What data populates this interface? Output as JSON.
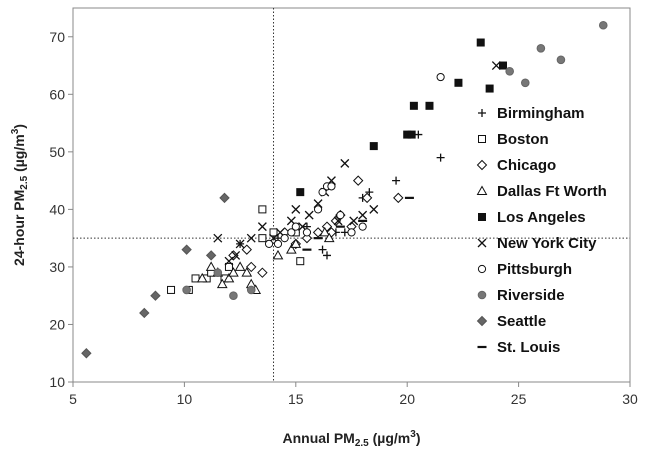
{
  "chart_data": {
    "type": "scatter",
    "xlabel": {
      "main": "Annual PM",
      "sub": "2.5",
      "unit": " (µg/m",
      "sup": "3",
      "close": ")"
    },
    "ylabel": {
      "main": "24-hour PM",
      "sub": "2.5",
      "unit": " (µg/m",
      "sup": "3",
      "close": ")"
    },
    "xlim": [
      5,
      30
    ],
    "ylim": [
      10,
      75
    ],
    "xticks": [
      "5",
      "10",
      "15",
      "20",
      "25",
      "30"
    ],
    "yticks": [
      "10",
      "20",
      "30",
      "40",
      "50",
      "60",
      "70"
    ],
    "reference_lines": {
      "x": 14,
      "y": 35
    },
    "legend_position": "right",
    "series": [
      {
        "name": "Birmingham",
        "marker": "plus",
        "points": [
          [
            12.5,
            34
          ],
          [
            14.2,
            35
          ],
          [
            14.5,
            35
          ],
          [
            15.0,
            36
          ],
          [
            15.5,
            37
          ],
          [
            16.0,
            36
          ],
          [
            16.2,
            33
          ],
          [
            16.4,
            32
          ],
          [
            16.8,
            36
          ],
          [
            17.2,
            36
          ],
          [
            17.5,
            36
          ],
          [
            18.0,
            42
          ],
          [
            18.3,
            43
          ],
          [
            19.5,
            45
          ],
          [
            20.5,
            53
          ],
          [
            21.5,
            49
          ]
        ]
      },
      {
        "name": "Boston",
        "marker": "square-open",
        "points": [
          [
            9.4,
            26
          ],
          [
            10.2,
            26
          ],
          [
            10.5,
            28
          ],
          [
            11.0,
            28
          ],
          [
            11.2,
            29
          ],
          [
            11.8,
            28
          ],
          [
            12.0,
            30
          ],
          [
            13.5,
            35
          ],
          [
            13.5,
            40
          ],
          [
            14.0,
            36
          ],
          [
            15.0,
            36
          ],
          [
            15.2,
            31
          ]
        ]
      },
      {
        "name": "Chicago",
        "marker": "diamond-open",
        "points": [
          [
            12.2,
            32
          ],
          [
            12.8,
            33
          ],
          [
            13.0,
            30
          ],
          [
            13.5,
            29
          ],
          [
            14.5,
            36
          ],
          [
            15.0,
            34
          ],
          [
            15.5,
            35
          ],
          [
            16.0,
            36
          ],
          [
            16.4,
            37
          ],
          [
            16.6,
            36
          ],
          [
            16.8,
            38
          ],
          [
            17.0,
            39
          ],
          [
            17.5,
            37
          ],
          [
            17.8,
            45
          ],
          [
            18.2,
            42
          ],
          [
            19.6,
            42
          ]
        ]
      },
      {
        "name": "Dallas Ft Worth",
        "marker": "triangle-open",
        "points": [
          [
            10.8,
            28
          ],
          [
            11.2,
            30
          ],
          [
            11.5,
            29
          ],
          [
            11.7,
            27
          ],
          [
            12.0,
            28
          ],
          [
            12.2,
            29
          ],
          [
            12.5,
            30
          ],
          [
            12.8,
            29
          ],
          [
            13.0,
            27
          ],
          [
            13.2,
            26
          ],
          [
            14.2,
            32
          ],
          [
            14.8,
            33
          ],
          [
            15.0,
            34
          ],
          [
            16.3,
            36
          ],
          [
            16.5,
            35
          ]
        ]
      },
      {
        "name": "Los Angeles",
        "marker": "square-filled",
        "points": [
          [
            15.2,
            43
          ],
          [
            18.5,
            51
          ],
          [
            20.0,
            53
          ],
          [
            20.2,
            53
          ],
          [
            20.3,
            58
          ],
          [
            21.0,
            58
          ],
          [
            22.3,
            62
          ],
          [
            23.3,
            69
          ],
          [
            23.7,
            61
          ],
          [
            24.3,
            65
          ]
        ]
      },
      {
        "name": "New York City",
        "marker": "x",
        "points": [
          [
            11.5,
            35
          ],
          [
            12.0,
            31
          ],
          [
            12.3,
            32
          ],
          [
            12.5,
            34
          ],
          [
            13.0,
            35
          ],
          [
            13.5,
            37
          ],
          [
            14.0,
            35
          ],
          [
            14.3,
            36
          ],
          [
            14.8,
            38
          ],
          [
            15.0,
            40
          ],
          [
            15.3,
            37
          ],
          [
            15.6,
            39
          ],
          [
            16.0,
            41
          ],
          [
            16.3,
            43
          ],
          [
            16.6,
            45
          ],
          [
            16.9,
            38
          ],
          [
            17.2,
            48
          ],
          [
            17.6,
            38
          ],
          [
            18.0,
            39
          ],
          [
            18.5,
            40
          ],
          [
            24.0,
            65
          ]
        ]
      },
      {
        "name": "Pittsburgh",
        "marker": "circle-open",
        "points": [
          [
            13.8,
            34
          ],
          [
            14.2,
            34
          ],
          [
            14.5,
            35
          ],
          [
            14.8,
            36
          ],
          [
            15.0,
            37
          ],
          [
            15.5,
            36
          ],
          [
            16.0,
            40
          ],
          [
            16.2,
            43
          ],
          [
            16.4,
            44
          ],
          [
            16.6,
            44
          ],
          [
            17.0,
            39
          ],
          [
            17.5,
            36
          ],
          [
            18.0,
            37
          ],
          [
            21.5,
            63
          ]
        ]
      },
      {
        "name": "Riverside",
        "marker": "circle-filled",
        "points": [
          [
            10.1,
            26
          ],
          [
            11.5,
            29
          ],
          [
            12.2,
            25
          ],
          [
            13.0,
            26
          ],
          [
            24.6,
            64
          ],
          [
            25.3,
            62
          ],
          [
            26.0,
            68
          ],
          [
            26.9,
            66
          ],
          [
            28.8,
            72
          ]
        ]
      },
      {
        "name": "Seattle",
        "marker": "diamond-filled",
        "points": [
          [
            5.6,
            15
          ],
          [
            8.2,
            22
          ],
          [
            8.7,
            25
          ],
          [
            10.1,
            33
          ],
          [
            11.2,
            32
          ],
          [
            11.8,
            42
          ]
        ]
      },
      {
        "name": "St. Louis",
        "marker": "dash",
        "points": [
          [
            15.5,
            33
          ],
          [
            16.0,
            35
          ],
          [
            17.0,
            37
          ],
          [
            18.0,
            38
          ],
          [
            20.1,
            42
          ]
        ]
      }
    ]
  }
}
